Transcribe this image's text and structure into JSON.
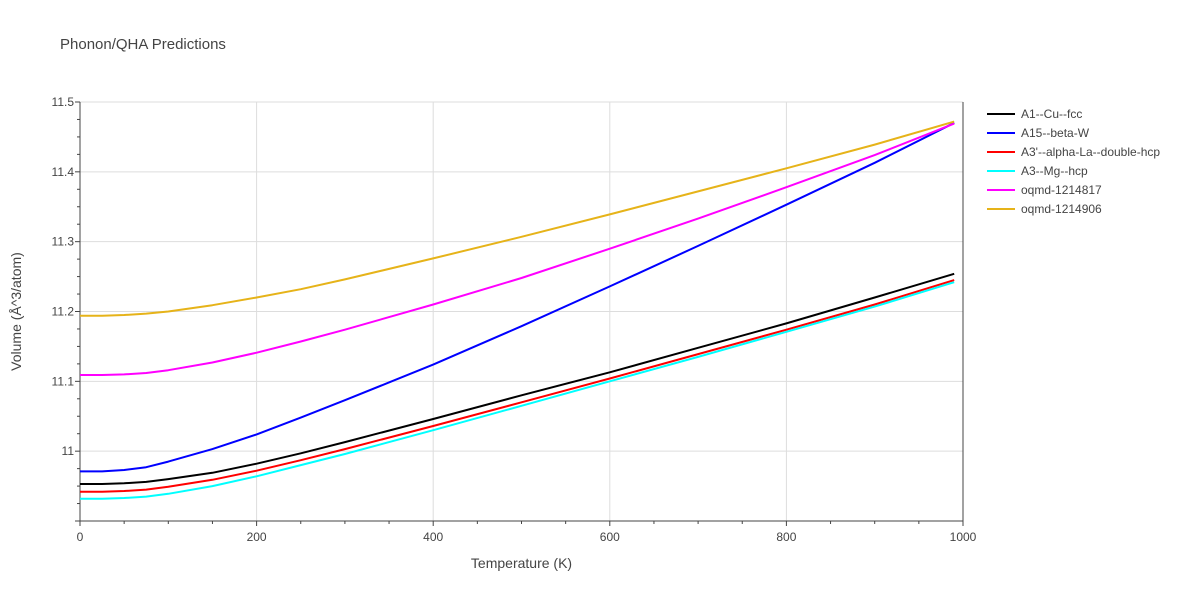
{
  "chart_data": {
    "type": "line",
    "title": "Phonon/QHA Predictions",
    "xlabel": "Temperature (K)",
    "ylabel": "Volume (Å^3/atom)",
    "xlim": [
      0,
      1000
    ],
    "ylim": [
      10.9,
      11.5
    ],
    "x_ticks": [
      0,
      200,
      400,
      600,
      800,
      1000
    ],
    "y_ticks": [
      11,
      11.1,
      11.2,
      11.3,
      11.4,
      11.5
    ],
    "x_tick_labels": [
      "0",
      "200",
      "400",
      "600",
      "800",
      "1000"
    ],
    "y_tick_labels": [
      "11",
      "11.1",
      "11.2",
      "11.3",
      "11.4",
      "11.5"
    ],
    "grid": true,
    "legend_position": "right",
    "x": [
      0,
      25,
      50,
      75,
      100,
      150,
      200,
      250,
      300,
      400,
      500,
      600,
      700,
      800,
      900,
      990
    ],
    "series": [
      {
        "name": "A1--Cu--fcc",
        "color": "#000000",
        "values": [
          10.953,
          10.953,
          10.954,
          10.956,
          10.96,
          10.969,
          10.982,
          10.997,
          11.013,
          11.046,
          11.08,
          11.113,
          11.148,
          11.183,
          11.22,
          11.254
        ]
      },
      {
        "name": "A15--beta-W",
        "color": "#0000ff",
        "values": [
          10.971,
          10.971,
          10.973,
          10.977,
          10.985,
          11.003,
          11.024,
          11.048,
          11.073,
          11.124,
          11.179,
          11.236,
          11.294,
          11.353,
          11.413,
          11.47
        ]
      },
      {
        "name": "A3'--alpha-La--double-hcp",
        "color": "#ff0000",
        "values": [
          10.942,
          10.942,
          10.943,
          10.945,
          10.949,
          10.959,
          10.972,
          10.987,
          11.003,
          11.036,
          11.07,
          11.104,
          11.139,
          11.174,
          11.21,
          11.245
        ]
      },
      {
        "name": "A3--Mg--hcp",
        "color": "#00ffff",
        "values": [
          10.932,
          10.932,
          10.933,
          10.935,
          10.939,
          10.95,
          10.964,
          10.98,
          10.996,
          11.03,
          11.065,
          11.1,
          11.135,
          11.171,
          11.207,
          11.242
        ]
      },
      {
        "name": "oqmd-1214817",
        "color": "#ff00ff",
        "values": [
          11.109,
          11.109,
          11.11,
          11.112,
          11.116,
          11.127,
          11.141,
          11.157,
          11.174,
          11.21,
          11.248,
          11.29,
          11.333,
          11.378,
          11.424,
          11.469
        ]
      },
      {
        "name": "oqmd-1214906",
        "color": "#e6b319",
        "values": [
          11.194,
          11.194,
          11.195,
          11.197,
          11.2,
          11.209,
          11.22,
          11.232,
          11.246,
          11.276,
          11.307,
          11.339,
          11.372,
          11.405,
          11.439,
          11.472
        ]
      }
    ]
  }
}
